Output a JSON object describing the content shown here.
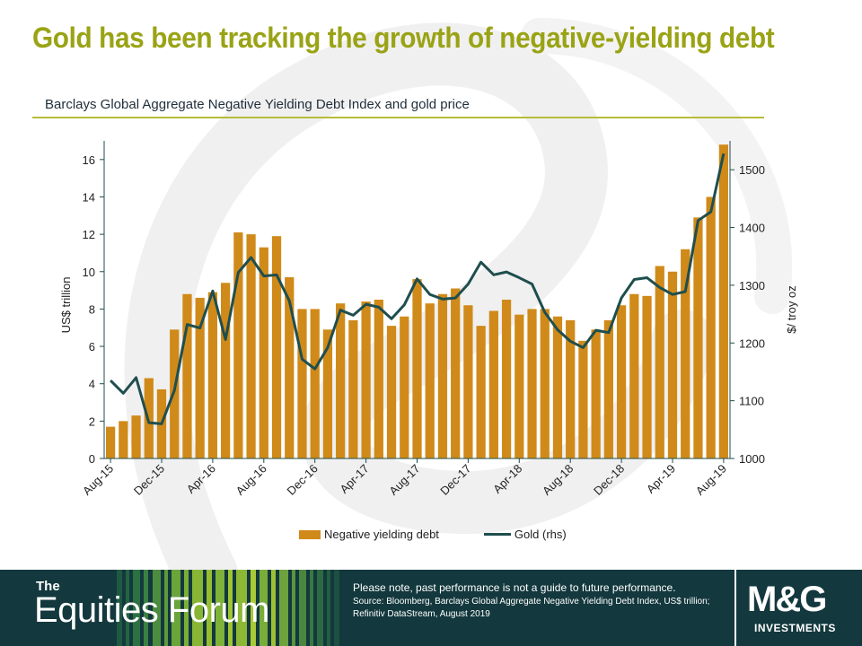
{
  "page": {
    "headline": "Gold has been tracking the growth of negative-yielding debt"
  },
  "chart_data": {
    "type": "bar",
    "title": "Barclays Global Aggregate Negative Yielding Debt Index and gold price",
    "categories": [
      "Aug-15",
      "Sep-15",
      "Oct-15",
      "Nov-15",
      "Dec-15",
      "Jan-16",
      "Feb-16",
      "Mar-16",
      "Apr-16",
      "May-16",
      "Jun-16",
      "Jul-16",
      "Aug-16",
      "Sep-16",
      "Oct-16",
      "Nov-16",
      "Dec-16",
      "Jan-17",
      "Feb-17",
      "Mar-17",
      "Apr-17",
      "May-17",
      "Jun-17",
      "Jul-17",
      "Aug-17",
      "Sep-17",
      "Oct-17",
      "Nov-17",
      "Dec-17",
      "Jan-18",
      "Feb-18",
      "Mar-18",
      "Apr-18",
      "May-18",
      "Jun-18",
      "Jul-18",
      "Aug-18",
      "Sep-18",
      "Oct-18",
      "Nov-18",
      "Dec-18",
      "Jan-19",
      "Feb-19",
      "Mar-19",
      "Apr-19",
      "May-19",
      "Jun-19",
      "Jul-19",
      "Aug-19"
    ],
    "x_tick_labels": [
      "Aug-15",
      "Dec-15",
      "Apr-16",
      "Aug-16",
      "Dec-16",
      "Apr-17",
      "Aug-17",
      "Dec-17",
      "Apr-18",
      "Aug-18",
      "Dec-18",
      "Apr-19",
      "Aug-19"
    ],
    "series": [
      {
        "name": "Negative yielding debt",
        "type": "bar",
        "axis": "left",
        "color": "#d08a19",
        "values": [
          1.7,
          2.0,
          2.3,
          4.3,
          3.7,
          6.9,
          8.8,
          8.6,
          8.9,
          9.4,
          12.1,
          12.0,
          11.3,
          11.9,
          9.7,
          8.0,
          8.0,
          6.9,
          8.3,
          7.4,
          8.4,
          8.5,
          7.1,
          7.6,
          9.6,
          8.3,
          8.8,
          9.1,
          8.2,
          7.1,
          7.9,
          8.5,
          7.7,
          8.0,
          8.0,
          7.6,
          7.4,
          6.3,
          6.9,
          7.4,
          8.2,
          8.8,
          8.7,
          10.3,
          10.0,
          11.2,
          12.9,
          14.0,
          16.8
        ]
      },
      {
        "name": "Gold (rhs)",
        "type": "line",
        "axis": "right",
        "color": "#1f4e4e",
        "values": [
          1135,
          1113,
          1140,
          1062,
          1060,
          1118,
          1232,
          1226,
          1290,
          1206,
          1322,
          1348,
          1316,
          1318,
          1273,
          1172,
          1155,
          1192,
          1257,
          1248,
          1267,
          1262,
          1242,
          1266,
          1311,
          1284,
          1276,
          1278,
          1302,
          1340,
          1318,
          1323,
          1313,
          1302,
          1253,
          1223,
          1203,
          1192,
          1222,
          1218,
          1278,
          1310,
          1313,
          1296,
          1284,
          1289,
          1412,
          1427,
          1528
        ]
      }
    ],
    "y_left": {
      "label": "US$ trillion",
      "min": 0,
      "max": 17,
      "ticks": [
        0,
        2,
        4,
        6,
        8,
        10,
        12,
        14,
        16
      ]
    },
    "y_right": {
      "label": "$/ troy oz",
      "min": 1000,
      "max": 1550,
      "ticks": [
        1000,
        1100,
        1200,
        1300,
        1400,
        1500
      ]
    },
    "legend_position": "bottom-center",
    "grid": false
  },
  "legend": {
    "bar_label": "Negative yielding debt",
    "line_label": "Gold (rhs)"
  },
  "footer": {
    "brand_small": "The",
    "brand_big": "Equities Forum",
    "disclaimer": "Please note, past performance  is not a guide to future performance.",
    "source": "Source: Bloomberg, Barclays Global Aggregate Negative Yielding Debt Index, US$ trillion; Refinitiv DataStream, August 2019",
    "logo_main": "M&G",
    "logo_sub": "INVESTMENTS"
  }
}
